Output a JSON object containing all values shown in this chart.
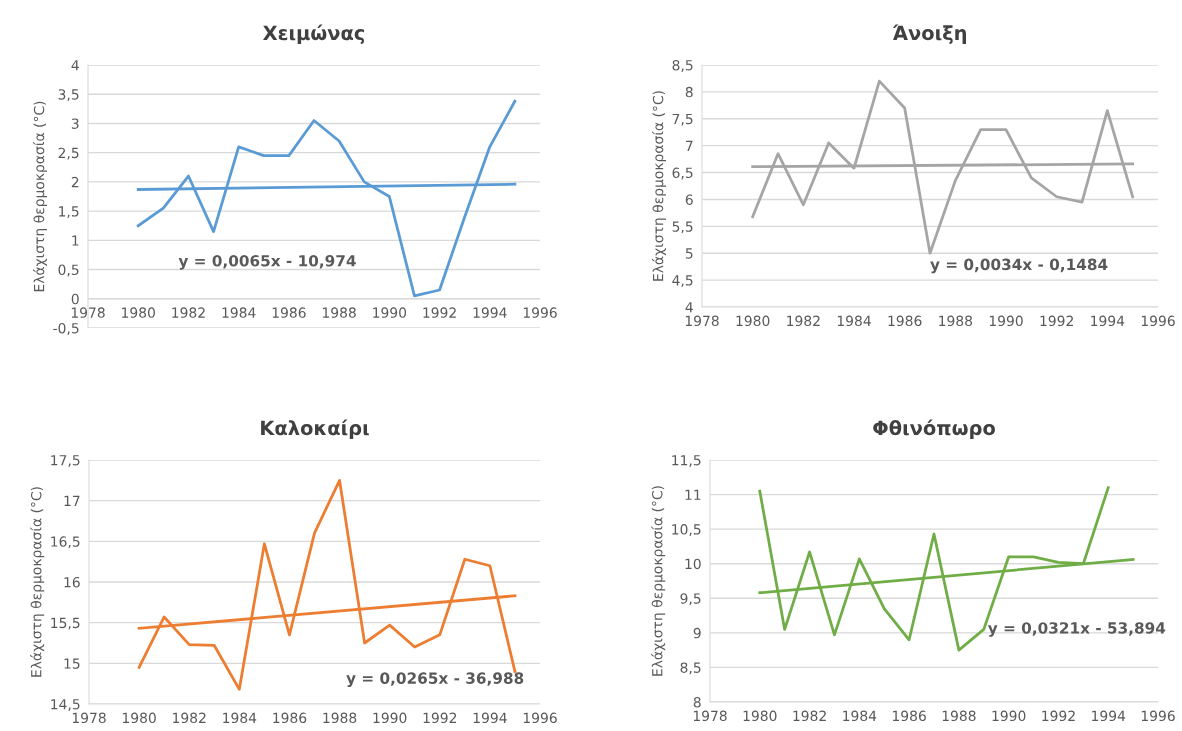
{
  "chart_data": [
    {
      "type": "line",
      "title": "Χειμώνας",
      "ylabel": "Ελάχιστη θερμοκρασία (°C)",
      "xlim": [
        1978,
        1996
      ],
      "xticks": [
        1978,
        1980,
        1982,
        1984,
        1986,
        1988,
        1990,
        1992,
        1994,
        1996
      ],
      "ylim": [
        -0.5,
        4
      ],
      "yticks": [
        {
          "value": -0.5,
          "label": "-0,5"
        },
        0,
        {
          "value": 0.5,
          "label": "0,5"
        },
        1,
        {
          "value": 1.5,
          "label": "1,5"
        },
        2,
        {
          "value": 2.5,
          "label": "2,5"
        },
        3,
        {
          "value": 3.5,
          "label": "3,5"
        },
        4
      ],
      "grid": "y",
      "legend": false,
      "series": [
        {
          "color": "#5b9bd5",
          "x": [
            1980,
            1981,
            1982,
            1983,
            1984,
            1985,
            1986,
            1987,
            1988,
            1989,
            1990,
            1991,
            1992,
            1993,
            1994,
            1995
          ],
          "values": [
            1.25,
            1.55,
            2.1,
            1.15,
            2.6,
            2.45,
            2.45,
            3.05,
            2.7,
            2.0,
            1.75,
            0.05,
            0.15,
            1.4,
            2.6,
            3.38
          ]
        },
        {
          "color": "#5b9bd5",
          "x": [
            1980,
            1995
          ],
          "values": [
            1.87,
            1.96
          ]
        }
      ],
      "annotations": [
        "y = 0,0065x - 10,974"
      ]
    },
    {
      "type": "line",
      "title": "Άνοιξη",
      "ylabel": "Ελάχιστη θερμοκρασία (°C)",
      "xlim": [
        1978,
        1996
      ],
      "xticks": [
        1978,
        1980,
        1982,
        1984,
        1986,
        1988,
        1990,
        1992,
        1994,
        1996
      ],
      "ylim": [
        4,
        8.5
      ],
      "yticks": [
        4,
        {
          "value": 4.5,
          "label": "4,5"
        },
        5,
        {
          "value": 5.5,
          "label": "5,5"
        },
        6,
        {
          "value": 6.5,
          "label": "6,5"
        },
        7,
        {
          "value": 7.5,
          "label": "7,5"
        },
        8,
        {
          "value": 8.5,
          "label": "8,5"
        }
      ],
      "grid": "y",
      "legend": false,
      "series": [
        {
          "color": "#a5a5a5",
          "x": [
            1980,
            1981,
            1982,
            1983,
            1984,
            1985,
            1986,
            1987,
            1988,
            1989,
            1990,
            1991,
            1992,
            1993,
            1994,
            1995
          ],
          "values": [
            5.68,
            6.85,
            5.9,
            7.05,
            6.58,
            8.2,
            7.7,
            5.0,
            6.35,
            7.3,
            7.3,
            6.4,
            6.05,
            5.95,
            7.65,
            6.05
          ]
        },
        {
          "color": "#a5a5a5",
          "x": [
            1980,
            1995
          ],
          "values": [
            6.61,
            6.66
          ]
        }
      ],
      "annotations": [
        "y = 0,0034x - 0,1484"
      ]
    },
    {
      "type": "line",
      "title": "Καλοκαίρι",
      "ylabel": "Ελάχιστη θερμοκρασία (°C)",
      "xlim": [
        1978,
        1996
      ],
      "xticks": [
        1978,
        1980,
        1982,
        1984,
        1986,
        1988,
        1990,
        1992,
        1994,
        1996
      ],
      "ylim": [
        14.5,
        17.5
      ],
      "yticks": [
        {
          "value": 14.5,
          "label": "14,5"
        },
        15,
        {
          "value": 15.5,
          "label": "15,5"
        },
        16,
        {
          "value": 16.5,
          "label": "16,5"
        },
        17,
        {
          "value": 17.5,
          "label": "17,5"
        }
      ],
      "grid": "y",
      "legend": false,
      "series": [
        {
          "color": "#ed7d31",
          "x": [
            1980,
            1981,
            1982,
            1983,
            1984,
            1985,
            1986,
            1987,
            1988,
            1989,
            1990,
            1991,
            1992,
            1993,
            1994,
            1995
          ],
          "values": [
            14.95,
            15.57,
            15.23,
            15.22,
            14.68,
            16.47,
            15.35,
            16.6,
            17.25,
            15.25,
            15.47,
            15.2,
            15.35,
            16.28,
            16.2,
            14.9
          ]
        },
        {
          "color": "#ed7d31",
          "x": [
            1980,
            1995
          ],
          "values": [
            15.43,
            15.83
          ]
        }
      ],
      "annotations": [
        "y = 0,0265x - 36,988"
      ]
    },
    {
      "type": "line",
      "title": "Φθινόπωρο",
      "ylabel": "Ελάχιστη θερμοκρασία (°C)",
      "xlim": [
        1978,
        1996
      ],
      "xticks": [
        1978,
        1980,
        1982,
        1984,
        1986,
        1988,
        1990,
        1992,
        1994,
        1996
      ],
      "ylim": [
        8,
        11.5
      ],
      "yticks": [
        8,
        {
          "value": 8.5,
          "label": "8,5"
        },
        9,
        {
          "value": 9.5,
          "label": "9,5"
        },
        10,
        {
          "value": 10.5,
          "label": "10,5"
        },
        11,
        {
          "value": 11.5,
          "label": "11,5"
        }
      ],
      "grid": "y",
      "legend": false,
      "series": [
        {
          "color": "#70ad47",
          "x": [
            1980,
            1981,
            1982,
            1983,
            1984,
            1985,
            1986,
            1987,
            1988,
            1989,
            1990,
            1991,
            1992,
            1993,
            1994
          ],
          "values": [
            11.05,
            9.05,
            10.17,
            8.97,
            10.07,
            9.35,
            8.9,
            10.43,
            8.75,
            9.05,
            10.1,
            10.1,
            10.02,
            10.0,
            11.1
          ]
        },
        {
          "color": "#70ad47",
          "x": [
            1980,
            1995
          ],
          "values": [
            9.58,
            10.06
          ]
        }
      ],
      "annotations": [
        "y = 0,0321x - 53,894"
      ]
    }
  ]
}
